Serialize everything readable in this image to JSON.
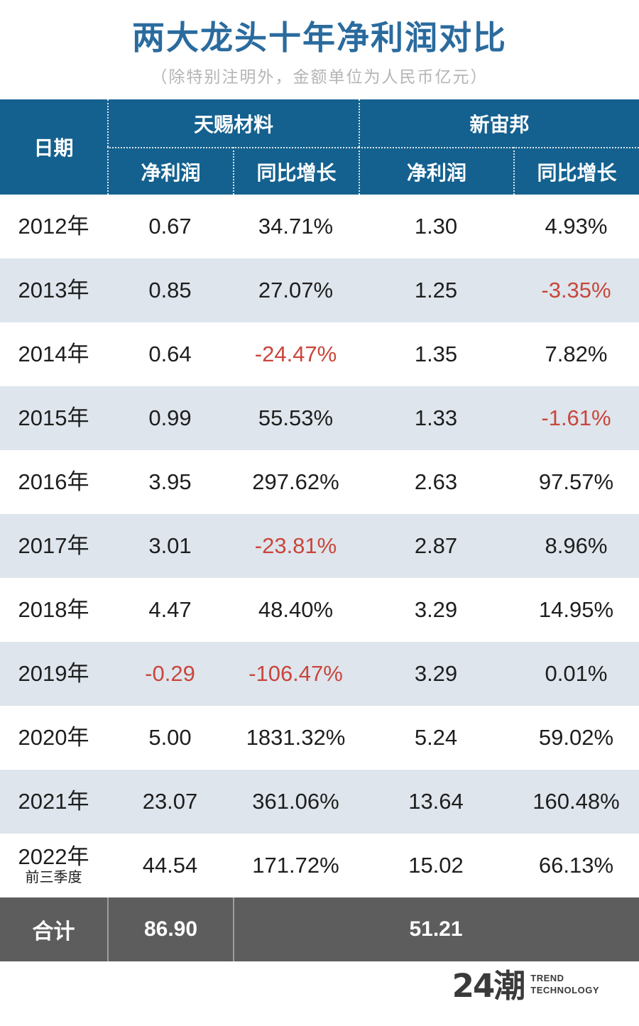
{
  "title": "两大龙头十年净利润对比",
  "subtitle": "（除特别注明外，金额单位为人民币亿元）",
  "table": {
    "header": {
      "date": "日期",
      "group1": "天赐材料",
      "group2": "新宙邦"
    },
    "subheaders": [
      "净利润",
      "同比增长",
      "净利润",
      "同比增长"
    ],
    "rows": [
      {
        "date": "2012年",
        "date_note": "",
        "c1": "0.67",
        "c2": "34.71%",
        "c3": "1.30",
        "c4": "4.93%"
      },
      {
        "date": "2013年",
        "date_note": "",
        "c1": "0.85",
        "c2": "27.07%",
        "c3": "1.25",
        "c4": "-3.35%"
      },
      {
        "date": "2014年",
        "date_note": "",
        "c1": "0.64",
        "c2": "-24.47%",
        "c3": "1.35",
        "c4": "7.82%"
      },
      {
        "date": "2015年",
        "date_note": "",
        "c1": "0.99",
        "c2": "55.53%",
        "c3": "1.33",
        "c4": "-1.61%"
      },
      {
        "date": "2016年",
        "date_note": "",
        "c1": "3.95",
        "c2": "297.62%",
        "c3": "2.63",
        "c4": "97.57%"
      },
      {
        "date": "2017年",
        "date_note": "",
        "c1": "3.01",
        "c2": "-23.81%",
        "c3": "2.87",
        "c4": "8.96%"
      },
      {
        "date": "2018年",
        "date_note": "",
        "c1": "4.47",
        "c2": "48.40%",
        "c3": "3.29",
        "c4": "14.95%"
      },
      {
        "date": "2019年",
        "date_note": "",
        "c1": "-0.29",
        "c2": "-106.47%",
        "c3": "3.29",
        "c4": "0.01%"
      },
      {
        "date": "2020年",
        "date_note": "",
        "c1": "5.00",
        "c2": "1831.32%",
        "c3": "5.24",
        "c4": "59.02%"
      },
      {
        "date": "2021年",
        "date_note": "",
        "c1": "23.07",
        "c2": "361.06%",
        "c3": "13.64",
        "c4": "160.48%"
      },
      {
        "date": "2022年",
        "date_note": "前三季度",
        "c1": "44.54",
        "c2": "171.72%",
        "c3": "15.02",
        "c4": "66.13%"
      }
    ],
    "footer": {
      "label": "合计",
      "total1": "86.90",
      "total2": "51.21"
    }
  },
  "logo": {
    "mark": "24潮",
    "line1": "TREND",
    "line2": "TECHNOLOGY"
  },
  "colors": {
    "title_blue": "#2a6b9e",
    "header_bg": "#14618f",
    "stripe": "#dee5ec",
    "negative": "#c9463c",
    "footer_bg": "#5d5d5d",
    "text_dark": "#1e1e1e",
    "subtitle_gray": "#b5b5b5",
    "logo_dark": "#3a3a3a"
  },
  "chart_data": {
    "type": "table",
    "title": "两大龙头十年净利润对比",
    "subtitle": "（除特别注明外，金额单位为人民币亿元）",
    "unit": "人民币亿元",
    "categories": [
      "2012年",
      "2013年",
      "2014年",
      "2015年",
      "2016年",
      "2017年",
      "2018年",
      "2019年",
      "2020年",
      "2021年",
      "2022年前三季度"
    ],
    "series": [
      {
        "name": "天赐材料 净利润",
        "values": [
          0.67,
          0.85,
          0.64,
          0.99,
          3.95,
          3.01,
          4.47,
          -0.29,
          5.0,
          23.07,
          44.54
        ]
      },
      {
        "name": "天赐材料 同比增长(%)",
        "values": [
          34.71,
          27.07,
          -24.47,
          55.53,
          297.62,
          -23.81,
          48.4,
          -106.47,
          1831.32,
          361.06,
          171.72
        ]
      },
      {
        "name": "新宙邦 净利润",
        "values": [
          1.3,
          1.25,
          1.35,
          1.33,
          2.63,
          2.87,
          3.29,
          3.29,
          5.24,
          13.64,
          15.02
        ]
      },
      {
        "name": "新宙邦 同比增长(%)",
        "values": [
          4.93,
          -3.35,
          7.82,
          -1.61,
          97.57,
          8.96,
          14.95,
          0.01,
          59.02,
          160.48,
          66.13
        ]
      }
    ],
    "totals": {
      "天赐材料 净利润合计": 86.9,
      "新宙邦 净利润合计": 51.21
    },
    "layout_hints": {
      "negative_values_colored_red": true,
      "striped_rows": true,
      "grouped_columns": [
        "天赐材料",
        "新宙邦"
      ]
    }
  }
}
